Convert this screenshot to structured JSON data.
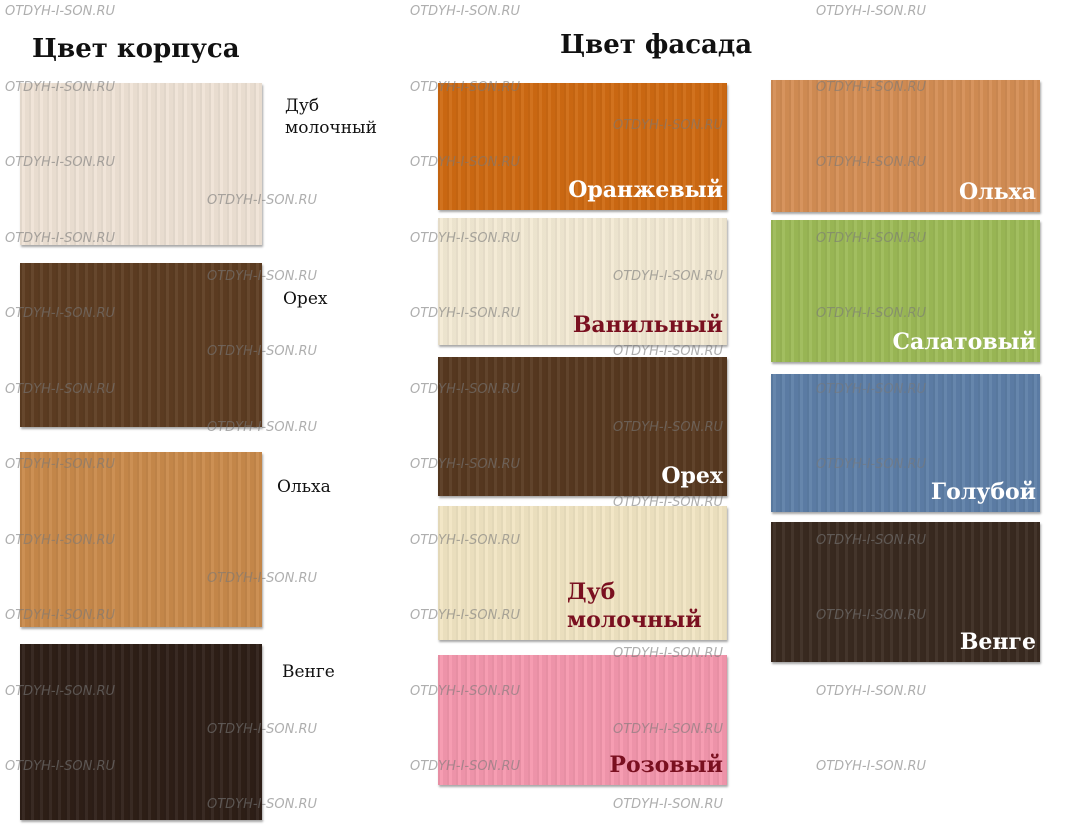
{
  "watermark": "OTDYH-I-SON.RU",
  "body_section": {
    "title": "Цвет корпуса",
    "items": [
      {
        "label": "Дуб молочный",
        "color": "#EFE3D6"
      },
      {
        "label": "Орех",
        "color": "#5E3D22"
      },
      {
        "label": "Ольха",
        "color": "#C98A4B"
      },
      {
        "label": "Венге",
        "color": "#2E1F17"
      }
    ]
  },
  "facade_section": {
    "title": "Цвет фасада",
    "items": [
      {
        "label": "Оранжевый",
        "color": "#CF6A12",
        "text_color": "#FFFFFF"
      },
      {
        "label": "Ванильный",
        "color": "#F3EAD4",
        "text_color": "#7A1020"
      },
      {
        "label": "Орех",
        "color": "#583920",
        "text_color": "#FFFFFF"
      },
      {
        "label": "Дуб молочный",
        "color": "#F1E5C3",
        "text_color": "#7A1020"
      },
      {
        "label": "Розовый",
        "color": "#F598AE",
        "text_color": "#7A1020"
      },
      {
        "label": "Ольха",
        "color": "#D58E55",
        "text_color": "#FFFFFF"
      },
      {
        "label": "Салатовый",
        "color": "#9DBB57",
        "text_color": "#FFFFFF"
      },
      {
        "label": "Голубой",
        "color": "#5E7FA8",
        "text_color": "#FFFFFF"
      },
      {
        "label": "Венге",
        "color": "#3A2A20",
        "text_color": "#FFFFFF"
      }
    ]
  }
}
